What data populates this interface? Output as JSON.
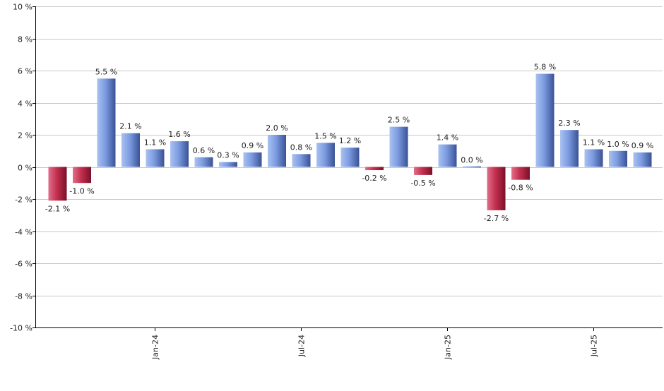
{
  "chart_data": {
    "type": "bar",
    "title": "",
    "xlabel": "",
    "ylabel": "",
    "ylim": [
      -10,
      10
    ],
    "y_ticks": [
      10,
      8,
      6,
      4,
      2,
      0,
      -2,
      -4,
      -6,
      -8,
      -10
    ],
    "y_tick_labels": [
      "10 %",
      "8 %",
      "6 %",
      "4 %",
      "2 %",
      "0 %",
      "-2 %",
      "-4 %",
      "-6 %",
      "-8 %",
      "-10 %"
    ],
    "grid": "horizontal",
    "x_tick_labels": [
      {
        "label": "Jan-24",
        "index": 4
      },
      {
        "label": "Jul-24",
        "index": 10
      },
      {
        "label": "Jan-25",
        "index": 16
      },
      {
        "label": "Jul-25",
        "index": 22
      }
    ],
    "values": [
      -2.1,
      -1.0,
      5.5,
      2.1,
      1.1,
      1.6,
      0.6,
      0.3,
      0.9,
      2.0,
      0.8,
      1.5,
      1.2,
      -0.2,
      2.5,
      -0.5,
      1.4,
      0.0,
      -2.7,
      -0.8,
      5.8,
      2.3,
      1.1,
      1.0,
      0.9
    ],
    "data_labels": [
      "-2.1 %",
      "-1.0 %",
      "5.5 %",
      "2.1 %",
      "1.1 %",
      "1.6 %",
      "0.6 %",
      "0.3 %",
      "0.9 %",
      "2.0 %",
      "0.8 %",
      "1.5 %",
      "1.2 %",
      "-0.2 %",
      "2.5 %",
      "-0.5 %",
      "1.4 %",
      "0.0 %",
      "-2.7 %",
      "-0.8 %",
      "5.8 %",
      "2.3 %",
      "1.1 %",
      "1.0 %",
      "0.9 %"
    ],
    "colors": {
      "positive": "#6f8fd6",
      "negative": "#c2284b",
      "grid": "#c8c8c8",
      "axis": "#000000"
    }
  }
}
